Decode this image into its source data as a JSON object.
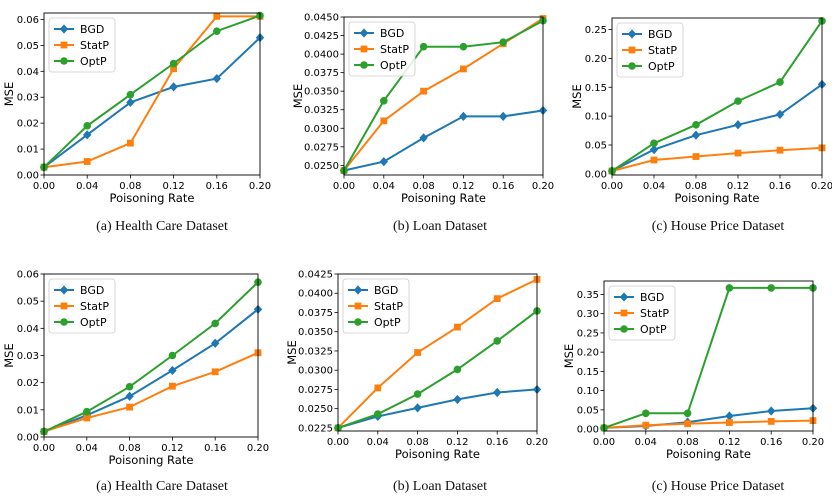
{
  "colors": {
    "BGD": "#1f77b4",
    "StatP": "#ff7f0e",
    "OptP": "#2ca02c"
  },
  "chart_data": [
    {
      "type": "line",
      "caption": "(a) Health Care Dataset",
      "xlabel": "Poisoning Rate",
      "ylabel": "MSE",
      "x": [
        0.0,
        0.04,
        0.08,
        0.12,
        0.16,
        0.2
      ],
      "xticks": [
        "0.00",
        "0.04",
        "0.08",
        "0.12",
        "0.16",
        "0.20"
      ],
      "xlim": [
        0,
        0.2
      ],
      "ylim": [
        0,
        0.0625
      ],
      "yticks": [
        "0.00",
        "0.01",
        "0.02",
        "0.03",
        "0.04",
        "0.05",
        "0.06"
      ],
      "legend": "top-left",
      "series": [
        {
          "name": "BGD",
          "marker": "diamond",
          "values": [
            0.003,
            0.0155,
            0.028,
            0.034,
            0.0372,
            0.053
          ]
        },
        {
          "name": "StatP",
          "marker": "square",
          "values": [
            0.003,
            0.0052,
            0.0123,
            0.041,
            0.0612,
            0.0612
          ]
        },
        {
          "name": "OptP",
          "marker": "circle",
          "values": [
            0.003,
            0.019,
            0.031,
            0.043,
            0.0555,
            0.0615
          ]
        }
      ]
    },
    {
      "type": "line",
      "caption": "(b) Loan Dataset",
      "xlabel": "Poisoning Rate",
      "ylabel": "MSE",
      "x": [
        0.0,
        0.04,
        0.08,
        0.12,
        0.16,
        0.2
      ],
      "xticks": [
        "0.00",
        "0.04",
        "0.08",
        "0.12",
        "0.16",
        "0.20"
      ],
      "xlim": [
        0,
        0.2
      ],
      "ylim": [
        0.0237,
        0.045
      ],
      "yticks": [
        "0.0250",
        "0.0275",
        "0.0300",
        "0.0325",
        "0.0350",
        "0.0375",
        "0.0400",
        "0.0425",
        "0.0450"
      ],
      "legend": "top-left",
      "series": [
        {
          "name": "BGD",
          "marker": "diamond",
          "values": [
            0.0243,
            0.0255,
            0.0287,
            0.0316,
            0.0316,
            0.0324
          ]
        },
        {
          "name": "StatP",
          "marker": "square",
          "values": [
            0.0243,
            0.031,
            0.035,
            0.038,
            0.0414,
            0.0448
          ]
        },
        {
          "name": "OptP",
          "marker": "circle",
          "values": [
            0.0243,
            0.0337,
            0.041,
            0.041,
            0.0416,
            0.0445
          ]
        }
      ]
    },
    {
      "type": "line",
      "caption": "(c) House Price Dataset",
      "xlabel": "Poisoning Rate",
      "ylabel": "MSE",
      "x": [
        0.0,
        0.04,
        0.08,
        0.12,
        0.16,
        0.2
      ],
      "xticks": [
        "0.00",
        "0.04",
        "0.08",
        "0.12",
        "0.16",
        "0.20"
      ],
      "xlim": [
        0,
        0.2
      ],
      "ylim": [
        -0.002,
        0.27
      ],
      "yticks": [
        "0.00",
        "0.05",
        "0.10",
        "0.15",
        "0.20",
        "0.25"
      ],
      "legend": "top-left",
      "series": [
        {
          "name": "BGD",
          "marker": "diamond",
          "values": [
            0.005,
            0.042,
            0.067,
            0.085,
            0.103,
            0.155
          ]
        },
        {
          "name": "StatP",
          "marker": "square",
          "values": [
            0.005,
            0.024,
            0.03,
            0.036,
            0.041,
            0.045
          ]
        },
        {
          "name": "OptP",
          "marker": "circle",
          "values": [
            0.005,
            0.053,
            0.085,
            0.126,
            0.159,
            0.265
          ]
        }
      ]
    },
    {
      "type": "line",
      "caption": "(a) Health Care Dataset",
      "xlabel": "Poisoning Rate",
      "ylabel": "MSE",
      "x": [
        0.0,
        0.04,
        0.08,
        0.12,
        0.16,
        0.2
      ],
      "xticks": [
        "0.00",
        "0.04",
        "0.08",
        "0.12",
        "0.16",
        "0.20"
      ],
      "xlim": [
        0,
        0.2
      ],
      "ylim": [
        0,
        0.06
      ],
      "yticks": [
        "0.00",
        "0.01",
        "0.02",
        "0.03",
        "0.04",
        "0.05",
        "0.06"
      ],
      "legend": "top-left",
      "series": [
        {
          "name": "BGD",
          "marker": "diamond",
          "values": [
            0.002,
            0.008,
            0.015,
            0.0245,
            0.0345,
            0.047
          ]
        },
        {
          "name": "StatP",
          "marker": "square",
          "values": [
            0.002,
            0.007,
            0.011,
            0.0187,
            0.024,
            0.031
          ]
        },
        {
          "name": "OptP",
          "marker": "circle",
          "values": [
            0.002,
            0.0093,
            0.0185,
            0.03,
            0.0418,
            0.057
          ]
        }
      ]
    },
    {
      "type": "line",
      "caption": "(b) Loan Dataset",
      "xlabel": "Poisoning Rate",
      "ylabel": "MSE",
      "x": [
        0.0,
        0.04,
        0.08,
        0.12,
        0.16,
        0.2
      ],
      "xticks": [
        "0.00",
        "0.04",
        "0.08",
        "0.12",
        "0.16",
        "0.20"
      ],
      "xlim": [
        0,
        0.2
      ],
      "ylim": [
        0.0221,
        0.0425
      ],
      "yticks": [
        "0.0225",
        "0.0250",
        "0.0275",
        "0.0300",
        "0.0325",
        "0.0350",
        "0.0375",
        "0.0400",
        "0.0425"
      ],
      "legend": "top-left",
      "series": [
        {
          "name": "BGD",
          "marker": "diamond",
          "values": [
            0.0225,
            0.024,
            0.0251,
            0.0262,
            0.0271,
            0.0275
          ]
        },
        {
          "name": "StatP",
          "marker": "square",
          "values": [
            0.0225,
            0.0277,
            0.0323,
            0.0356,
            0.0393,
            0.0418
          ]
        },
        {
          "name": "OptP",
          "marker": "circle",
          "values": [
            0.0225,
            0.0243,
            0.0269,
            0.0301,
            0.0338,
            0.0377
          ]
        }
      ]
    },
    {
      "type": "line",
      "caption": "(c) House Price Dataset",
      "xlabel": "Poisoning Rate",
      "ylabel": "MSE",
      "x": [
        0.0,
        0.04,
        0.08,
        0.12,
        0.16,
        0.2
      ],
      "xticks": [
        "0.00",
        "0.04",
        "0.08",
        "0.12",
        "0.16",
        "0.20"
      ],
      "xlim": [
        0,
        0.2
      ],
      "ylim": [
        -0.005,
        0.385
      ],
      "yticks": [
        "0.00",
        "0.05",
        "0.10",
        "0.15",
        "0.20",
        "0.25",
        "0.30",
        "0.35"
      ],
      "legend": "top-left",
      "series": [
        {
          "name": "BGD",
          "marker": "diamond",
          "values": [
            0.003,
            0.008,
            0.018,
            0.034,
            0.047,
            0.054
          ]
        },
        {
          "name": "StatP",
          "marker": "square",
          "values": [
            0.003,
            0.01,
            0.014,
            0.017,
            0.02,
            0.022
          ]
        },
        {
          "name": "OptP",
          "marker": "circle",
          "values": [
            0.003,
            0.041,
            0.041,
            0.367,
            0.367,
            0.367
          ]
        }
      ]
    }
  ]
}
